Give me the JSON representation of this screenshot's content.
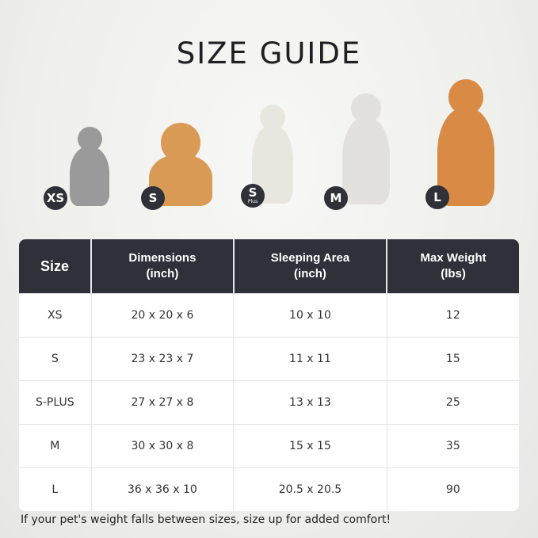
{
  "title": "SIZE GUIDE",
  "pets": [
    {
      "size": "XS",
      "sub": "",
      "animal": "cat",
      "color": "#9a9a9a"
    },
    {
      "size": "S",
      "sub": "",
      "animal": "pomeranian",
      "color": "#d99a55"
    },
    {
      "size": "S",
      "sub": "Plus",
      "animal": "jack-russell",
      "color": "#e9e6e0"
    },
    {
      "size": "M",
      "sub": "",
      "animal": "french-bulldog",
      "color": "#e3e1dd"
    },
    {
      "size": "L",
      "sub": "",
      "animal": "shiba-inu",
      "color": "#d98a45"
    }
  ],
  "table": {
    "headers": [
      [
        "Size",
        ""
      ],
      [
        "Dimensions",
        "(inch)"
      ],
      [
        "Sleeping Area",
        "(inch)"
      ],
      [
        "Max Weight",
        "(lbs)"
      ]
    ],
    "rows": [
      [
        "XS",
        "20 x 20 x 6",
        "10 x 10",
        "12"
      ],
      [
        "S",
        "23 x 23 x 7",
        "11 x 11",
        "15"
      ],
      [
        "S-PLUS",
        "27 x 27 x 8",
        "13 x 13",
        "25"
      ],
      [
        "M",
        "30 x 30 x 8",
        "15 x 15",
        "35"
      ],
      [
        "L",
        "36 x 36 x 10",
        "20.5 x 20.5",
        "90"
      ]
    ]
  },
  "note": "If your pet's weight falls between sizes, size up for added comfort!",
  "colors": {
    "header": "#2f3038",
    "badge": "#2f3038"
  }
}
